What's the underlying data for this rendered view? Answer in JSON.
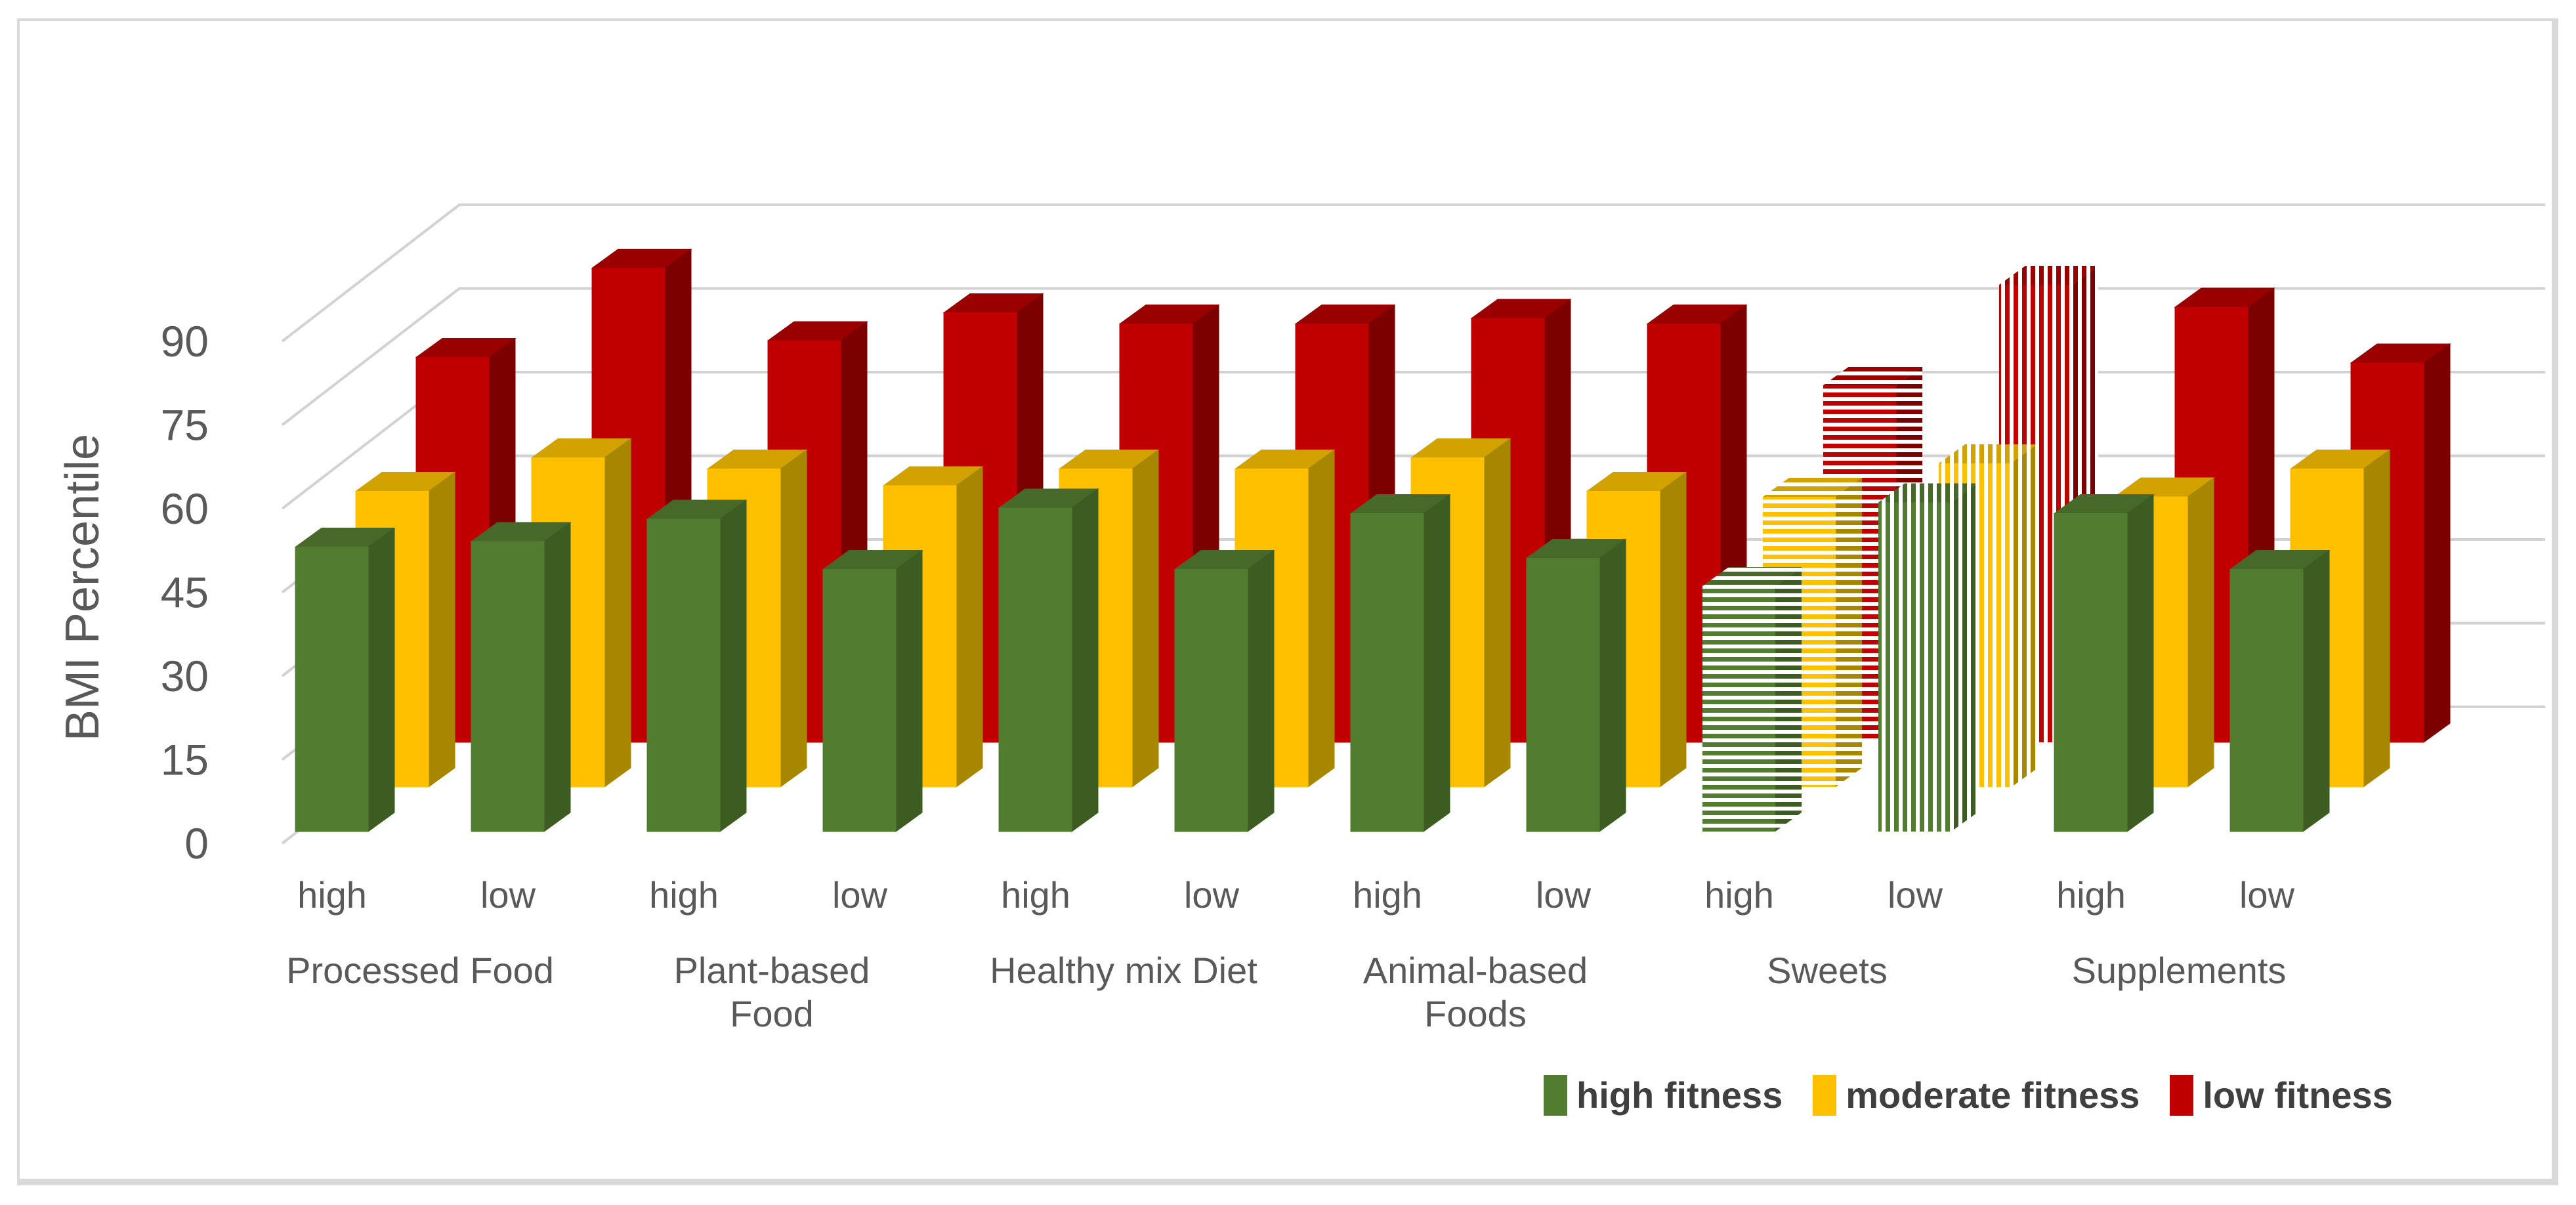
{
  "chart_data": {
    "type": "bar",
    "projection": "3d",
    "title": "",
    "ylabel": "BMI Percentile",
    "xlabel": "",
    "ylim": [
      0,
      90
    ],
    "y_ticks": [
      0,
      15,
      30,
      45,
      60,
      75,
      90
    ],
    "grid": true,
    "legend_position": "bottom-right",
    "series": [
      {
        "name": "high fitness",
        "key": "high",
        "colors": {
          "front": "#527c2f",
          "side": "#3c5c22",
          "top": "#466929"
        }
      },
      {
        "name": "moderate fitness",
        "key": "moderate",
        "colors": {
          "front": "#ffc000",
          "side": "#a88700",
          "top": "#d2a300"
        }
      },
      {
        "name": "low fitness",
        "key": "low",
        "colors": {
          "front": "#c00000",
          "side": "#7d0000",
          "top": "#9b0000"
        }
      }
    ],
    "groups": [
      {
        "name": "Processed Food",
        "label_lines": [
          "Processed Food"
        ]
      },
      {
        "name": "Plant-based Food",
        "label_lines": [
          "Plant-based",
          "Food"
        ]
      },
      {
        "name": "Healthy mix Diet",
        "label_lines": [
          "Healthy mix Diet"
        ]
      },
      {
        "name": "Animal-based Foods",
        "label_lines": [
          "Animal-based",
          "Foods"
        ]
      },
      {
        "name": "Sweets",
        "label_lines": [
          "Sweets"
        ]
      },
      {
        "name": "Supplements",
        "label_lines": [
          "Supplements"
        ]
      }
    ],
    "clusters": [
      {
        "group": "Processed Food",
        "level": "high",
        "pattern": "solid",
        "values": {
          "high": 51,
          "moderate": 53,
          "low": 69
        }
      },
      {
        "group": "Processed Food",
        "level": "low",
        "pattern": "solid",
        "values": {
          "high": 52,
          "moderate": 59,
          "low": 85
        }
      },
      {
        "group": "Plant-based Food",
        "level": "high",
        "pattern": "solid",
        "values": {
          "high": 56,
          "moderate": 57,
          "low": 72
        }
      },
      {
        "group": "Plant-based Food",
        "level": "low",
        "pattern": "solid",
        "values": {
          "high": 47,
          "moderate": 54,
          "low": 77
        }
      },
      {
        "group": "Healthy mix Diet",
        "level": "high",
        "pattern": "solid",
        "values": {
          "high": 58,
          "moderate": 57,
          "low": 75
        }
      },
      {
        "group": "Healthy mix Diet",
        "level": "low",
        "pattern": "solid",
        "values": {
          "high": 47,
          "moderate": 57,
          "low": 75
        }
      },
      {
        "group": "Animal-based Foods",
        "level": "high",
        "pattern": "solid",
        "values": {
          "high": 57,
          "moderate": 59,
          "low": 76
        }
      },
      {
        "group": "Animal-based Foods",
        "level": "low",
        "pattern": "solid",
        "values": {
          "high": 49,
          "moderate": 53,
          "low": 75
        }
      },
      {
        "group": "Sweets",
        "level": "high",
        "pattern": "stripes-horizontal",
        "values": {
          "high": 44,
          "moderate": 52,
          "low": 64
        }
      },
      {
        "group": "Sweets",
        "level": "low",
        "pattern": "stripes-vertical",
        "values": {
          "high": 59,
          "moderate": 58,
          "low": 82
        }
      },
      {
        "group": "Supplements",
        "level": "high",
        "pattern": "solid",
        "values": {
          "high": 57,
          "moderate": 52,
          "low": 78
        }
      },
      {
        "group": "Supplements",
        "level": "low",
        "pattern": "solid",
        "values": {
          "high": 47,
          "moderate": 57,
          "low": 68
        }
      }
    ],
    "colors": {
      "axis_text": "#595959",
      "gridline": "#d2d2d2",
      "legend_text": "#3f3f3f",
      "frame_border": "#d9d9d9",
      "background": "#ffffff"
    }
  },
  "legend": {
    "items": [
      {
        "label": "high fitness"
      },
      {
        "label": "moderate fitness"
      },
      {
        "label": "low fitness"
      }
    ]
  }
}
